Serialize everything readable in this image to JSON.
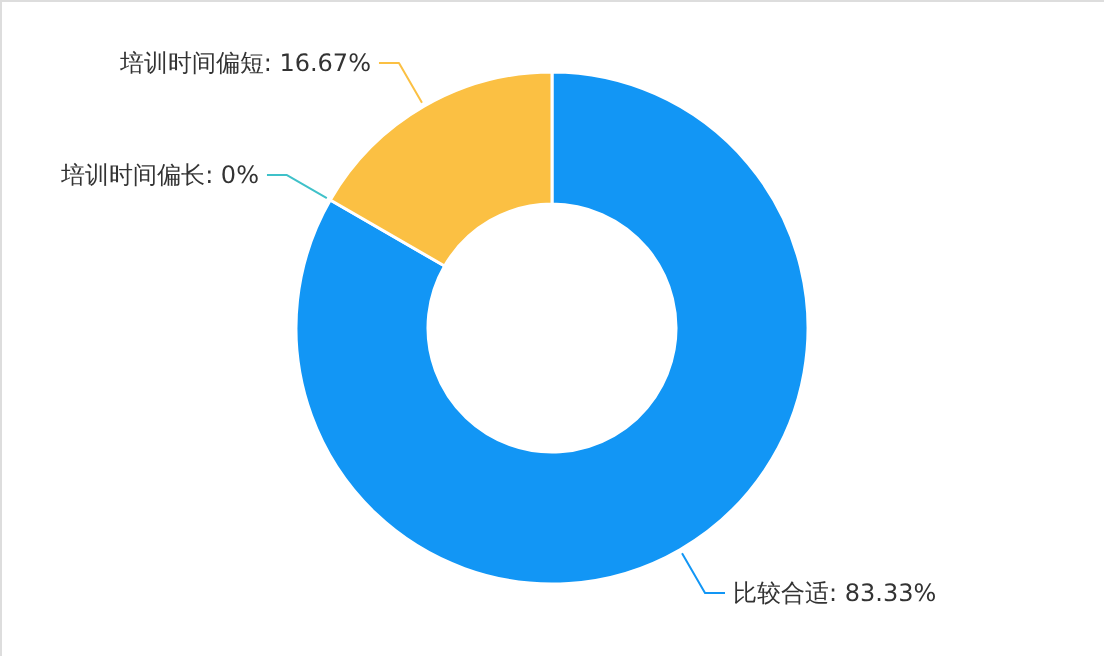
{
  "chart_data": {
    "type": "donut",
    "categories": [
      "比较合适",
      "培训时间偏长",
      "培训时间偏短"
    ],
    "values": [
      83.33,
      0,
      16.67
    ],
    "colors": [
      "#1296f5",
      "#3fc1c9",
      "#fbc043"
    ],
    "value_labels": [
      "83.33%",
      "0%",
      "16.67%"
    ]
  }
}
